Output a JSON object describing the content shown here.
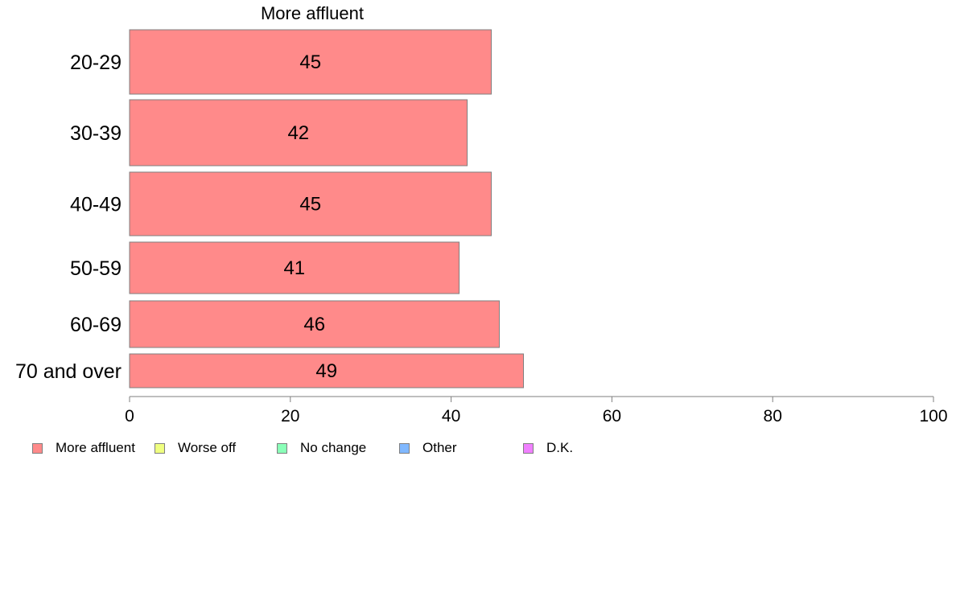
{
  "chart_data": {
    "type": "bar",
    "orientation": "horizontal",
    "title": "More affluent",
    "categories": [
      "20-29",
      "30-39",
      "40-49",
      "50-59",
      "60-69",
      "70 and over"
    ],
    "series": [
      {
        "name": "More affluent",
        "color": "#ff8a8a",
        "values": [
          45,
          42,
          45,
          41,
          46,
          49
        ]
      }
    ],
    "data_labels": [
      "45",
      "42",
      "45",
      "41",
      "46",
      "49"
    ],
    "xlim": [
      0,
      100
    ],
    "xticks": [
      0,
      20,
      40,
      60,
      80,
      100
    ],
    "xtick_labels": [
      "0",
      "20",
      "40",
      "60",
      "80",
      "100"
    ],
    "grid": false,
    "legend_position": "bottom",
    "legend": [
      {
        "label": "More affluent",
        "color": "#ff8a8a"
      },
      {
        "label": "Worse off",
        "color": "#efff80"
      },
      {
        "label": "No change",
        "color": "#8affb8"
      },
      {
        "label": "Other",
        "color": "#80b8ff"
      },
      {
        "label": "D.K.",
        "color": "#f080ff"
      }
    ]
  }
}
